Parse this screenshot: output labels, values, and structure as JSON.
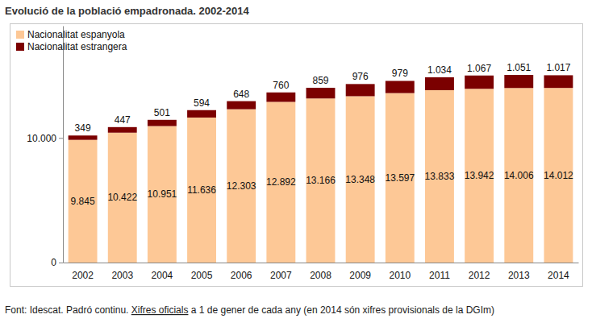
{
  "chart_data": {
    "type": "bar",
    "title": "Evolució de la població empadronada. 2002-2014",
    "source": [
      "Font: Idescat. Padró continu. ",
      "Xifres oficials",
      " a 1 de gener de cada any (en 2014 són xifres provisionals de la DGIm)"
    ],
    "categories": [
      "2002",
      "2003",
      "2004",
      "2005",
      "2006",
      "2007",
      "2008",
      "2009",
      "2010",
      "2011",
      "2012",
      "2013",
      "2014"
    ],
    "series": [
      {
        "name": "Nacionalitat espanyola",
        "color": "#fdc896",
        "values": [
          9845,
          10422,
          10951,
          11636,
          12303,
          12892,
          13166,
          13348,
          13597,
          13833,
          13942,
          14006,
          14012
        ],
        "value_labels": [
          "9.845",
          "10.422",
          "10.951",
          "11.636",
          "12.303",
          "12.892",
          "13.166",
          "13.348",
          "13.597",
          "13.833",
          "13.942",
          "14.006",
          "14.012"
        ]
      },
      {
        "name": "Nacionalitat estrangera",
        "color": "#7b0000",
        "values": [
          349,
          447,
          501,
          594,
          648,
          760,
          859,
          976,
          979,
          1034,
          1067,
          1051,
          1017
        ],
        "value_labels": [
          "349",
          "447",
          "501",
          "594",
          "648",
          "760",
          "859",
          "976",
          "979",
          "1.034",
          "1.067",
          "1.051",
          "1.017"
        ]
      }
    ],
    "stacked": true,
    "data_labels": true,
    "legend": "top-left",
    "grid": false,
    "ylim": [
      0,
      19000
    ],
    "yticks": [
      0,
      {
        "value": 10000,
        "label": "10.000"
      }
    ]
  }
}
